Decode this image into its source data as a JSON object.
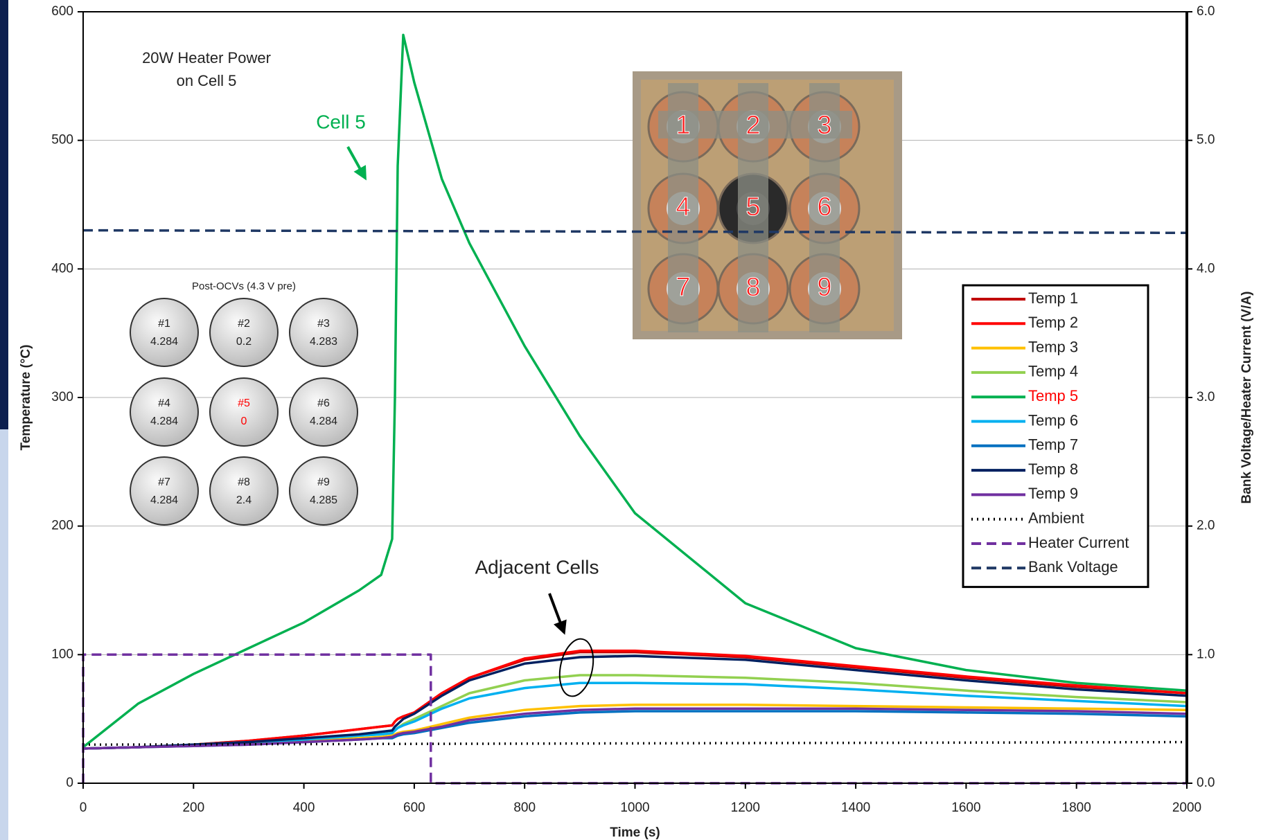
{
  "chart_data": {
    "type": "line",
    "xlabel": "Time (s)",
    "ylabel": "Temperature (°C)",
    "y2label": "Bank Voltage/Heater Current (V/A)",
    "xlim": [
      0,
      2000
    ],
    "xticks": [
      0,
      200,
      400,
      600,
      800,
      1000,
      1200,
      1400,
      1600,
      1800,
      2000
    ],
    "ylim": [
      0,
      600
    ],
    "yticks": [
      0,
      100,
      200,
      300,
      400,
      500,
      600
    ],
    "y2lim": [
      0,
      6
    ],
    "y2ticks": [
      {
        "value": 0,
        "label": "0.0"
      },
      {
        "value": 1,
        "label": "1.0"
      },
      {
        "value": 2,
        "label": "2.0"
      },
      {
        "value": 3,
        "label": "3.0"
      },
      {
        "value": 4,
        "label": "4.0"
      },
      {
        "value": 5,
        "label": "5.0"
      },
      {
        "value": 6,
        "label": "6.0"
      }
    ],
    "grid": true,
    "legend": "right",
    "x": [
      0,
      100,
      200,
      300,
      400,
      500,
      540,
      560,
      565,
      570,
      580,
      600,
      650,
      700,
      800,
      900,
      1000,
      1200,
      1400,
      1600,
      1800,
      2000
    ],
    "series": [
      {
        "name": "Temp 1",
        "color": "#c00000",
        "dash": "solid",
        "values": [
          27,
          28,
          30,
          33,
          37,
          42,
          44,
          45,
          48,
          50,
          52,
          55,
          70,
          82,
          96,
          102,
          102,
          98,
          90,
          82,
          75,
          70
        ]
      },
      {
        "name": "Temp 2",
        "color": "#ff0000",
        "dash": "solid",
        "values": [
          27,
          28,
          30,
          33,
          37,
          42,
          44,
          45,
          48,
          50,
          52,
          55,
          70,
          82,
          97,
          103,
          103,
          99,
          91,
          83,
          76,
          70
        ]
      },
      {
        "name": "Temp 3",
        "color": "#ffc000",
        "dash": "solid",
        "values": [
          27,
          28,
          30,
          31,
          33,
          35,
          36,
          37,
          38,
          39,
          40,
          41,
          46,
          51,
          57,
          60,
          61,
          61,
          60,
          59,
          58,
          57
        ]
      },
      {
        "name": "Temp 4",
        "color": "#92d050",
        "dash": "solid",
        "values": [
          27,
          28,
          30,
          32,
          34,
          37,
          38,
          39,
          41,
          43,
          46,
          50,
          60,
          70,
          80,
          84,
          84,
          82,
          78,
          72,
          67,
          63
        ]
      },
      {
        "name": "Temp 5",
        "color": "#00b050",
        "label_color": "#ff0000",
        "dash": "solid",
        "values": [
          28,
          62,
          85,
          105,
          125,
          150,
          162,
          190,
          300,
          480,
          582,
          545,
          470,
          420,
          340,
          270,
          210,
          140,
          105,
          88,
          78,
          72
        ]
      },
      {
        "name": "Temp 6",
        "color": "#00b0f0",
        "dash": "solid",
        "values": [
          27,
          28,
          30,
          32,
          34,
          37,
          38,
          39,
          41,
          43,
          45,
          48,
          58,
          66,
          74,
          78,
          78,
          77,
          73,
          68,
          64,
          60
        ]
      },
      {
        "name": "Temp 7",
        "color": "#0070c0",
        "dash": "solid",
        "values": [
          27,
          28,
          29,
          30,
          32,
          34,
          35,
          35,
          36,
          37,
          38,
          39,
          43,
          47,
          52,
          55,
          56,
          56,
          56,
          55,
          54,
          52
        ]
      },
      {
        "name": "Temp 8",
        "color": "#002060",
        "dash": "solid",
        "values": [
          27,
          28,
          30,
          32,
          35,
          38,
          40,
          41,
          44,
          46,
          50,
          54,
          68,
          80,
          93,
          98,
          99,
          96,
          88,
          80,
          73,
          68
        ]
      },
      {
        "name": "Temp 9",
        "color": "#7030a0",
        "dash": "solid",
        "values": [
          27,
          28,
          29,
          30,
          32,
          34,
          35,
          36,
          37,
          38,
          39,
          40,
          44,
          49,
          54,
          57,
          58,
          58,
          58,
          57,
          56,
          54
        ]
      },
      {
        "name": "Ambient",
        "color": "#000000",
        "dash": "dotted",
        "x": [
          0,
          2000
        ],
        "values": [
          30,
          32
        ]
      },
      {
        "name": "Heater Current",
        "color": "#7030a0",
        "dash": "dashed",
        "axis": "y2",
        "x": [
          0,
          0,
          630,
          630,
          2000
        ],
        "values": [
          0,
          1,
          1,
          0,
          0
        ]
      },
      {
        "name": "Bank Voltage",
        "color": "#1f3864",
        "dash": "dashed",
        "axis": "y2",
        "x": [
          0,
          2000
        ],
        "values": [
          4.3,
          4.28
        ]
      }
    ],
    "annotations": {
      "heater": [
        "20W Heater Power",
        "on Cell 5"
      ],
      "cell5": "Cell 5",
      "adjacent": "Adjacent Cells"
    },
    "photo_labels": [
      "1",
      "2",
      "3",
      "4",
      "5",
      "6",
      "7",
      "8",
      "9"
    ],
    "ocv_grid": {
      "title": "Post-OCVs (4.3 V pre)",
      "cells": [
        {
          "label": "#1",
          "value": "4.284"
        },
        {
          "label": "#2",
          "value": "0.2"
        },
        {
          "label": "#3",
          "value": "4.283"
        },
        {
          "label": "#4",
          "value": "4.284"
        },
        {
          "label": "#5",
          "value": "0",
          "color": "#ff0000"
        },
        {
          "label": "#6",
          "value": "4.284"
        },
        {
          "label": "#7",
          "value": "4.284"
        },
        {
          "label": "#8",
          "value": "2.4"
        },
        {
          "label": "#9",
          "value": "4.285"
        }
      ]
    }
  }
}
